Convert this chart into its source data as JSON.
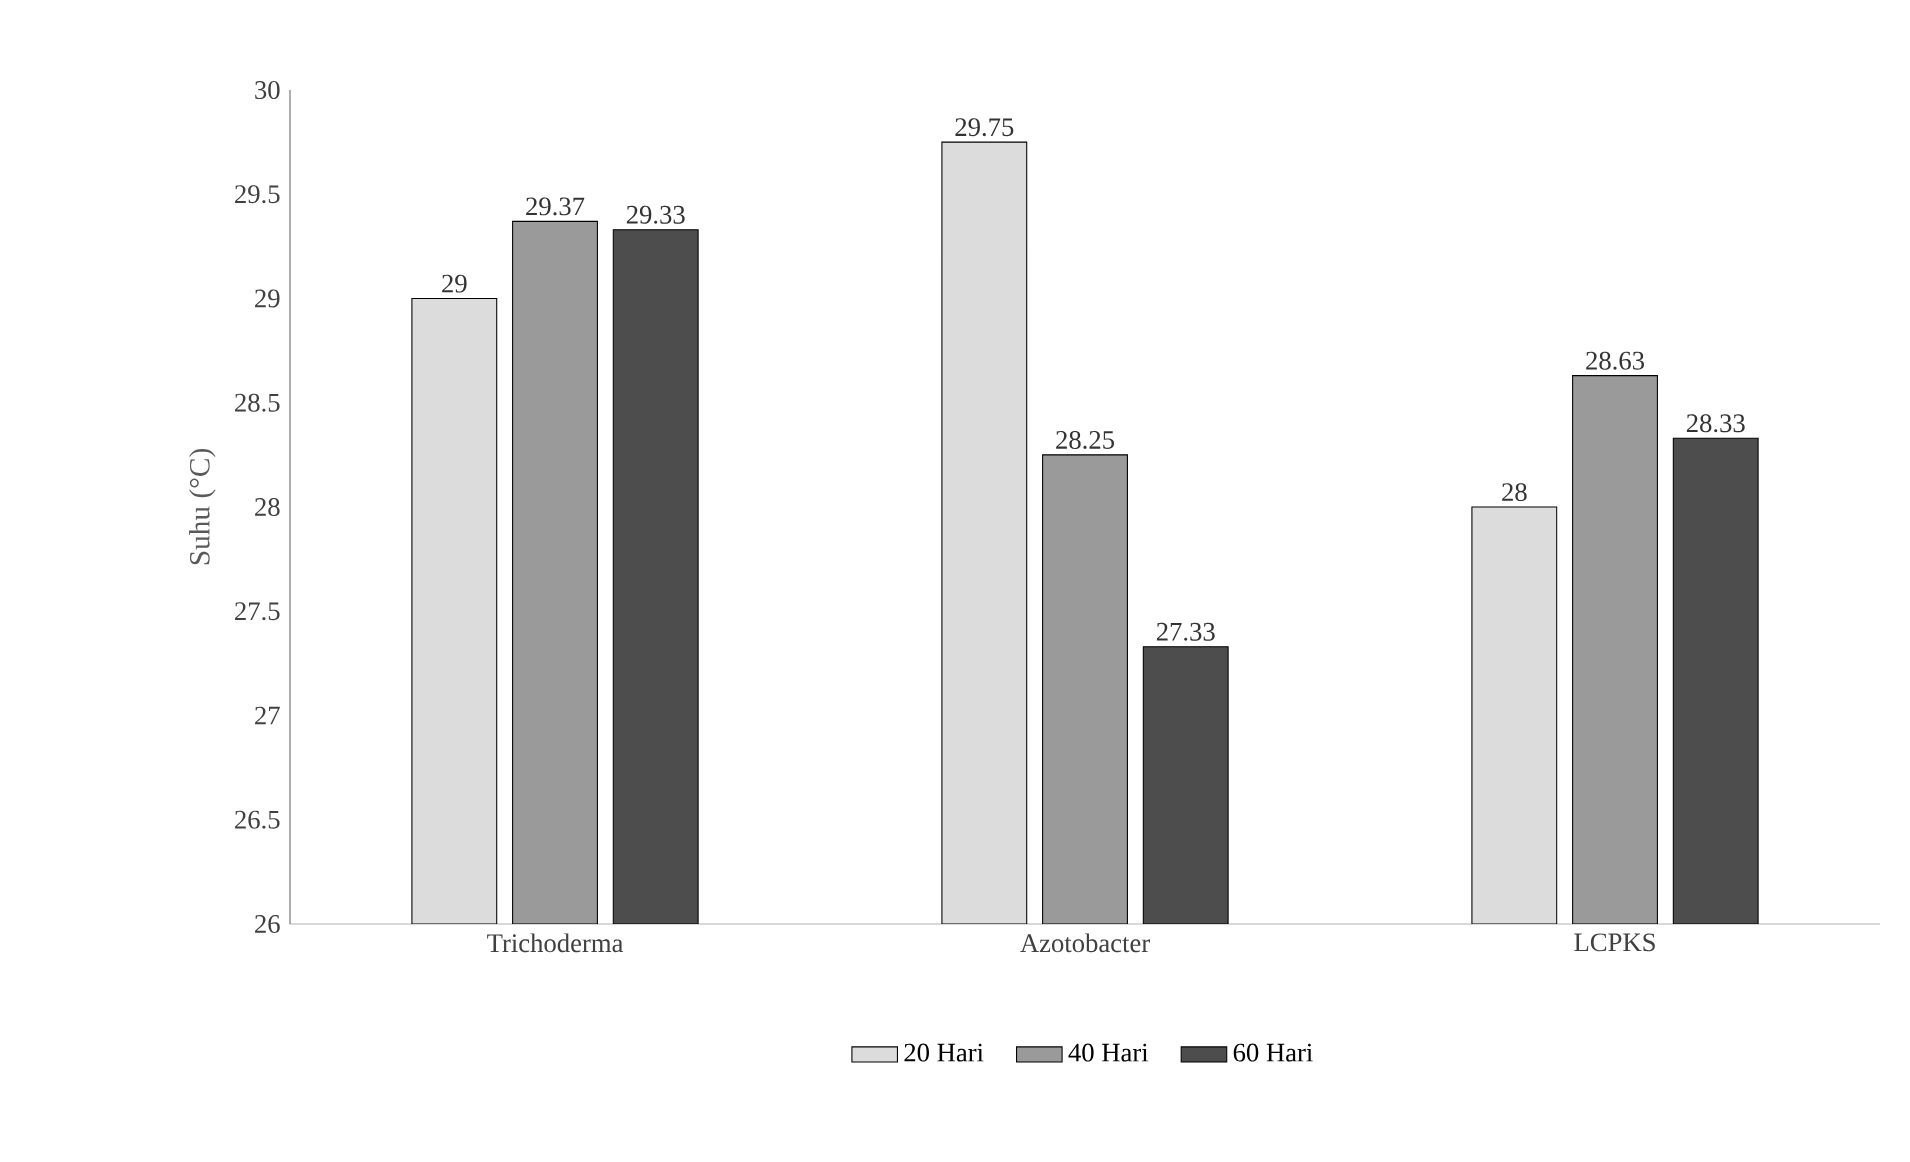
{
  "chart_data": {
    "type": "bar",
    "ylabel": "Suhu (°C)",
    "categories": [
      "Trichoderma",
      "Azotobacter",
      "LCPKS"
    ],
    "series": [
      {
        "name": "20 Hari",
        "color": "#dcdcdc",
        "values": [
          29,
          29.75,
          28
        ]
      },
      {
        "name": "40 Hari",
        "color": "#9a9a9a",
        "values": [
          29.37,
          28.25,
          28.63
        ]
      },
      {
        "name": "60 Hari",
        "color": "#4d4d4d",
        "values": [
          29.33,
          27.33,
          28.33
        ]
      }
    ],
    "ylim": [
      26,
      30
    ],
    "yticks": [
      26,
      26.5,
      27,
      27.5,
      28,
      28.5,
      29,
      29.5,
      30
    ],
    "data_labels": true,
    "legend": "bottom",
    "grid": false
  }
}
